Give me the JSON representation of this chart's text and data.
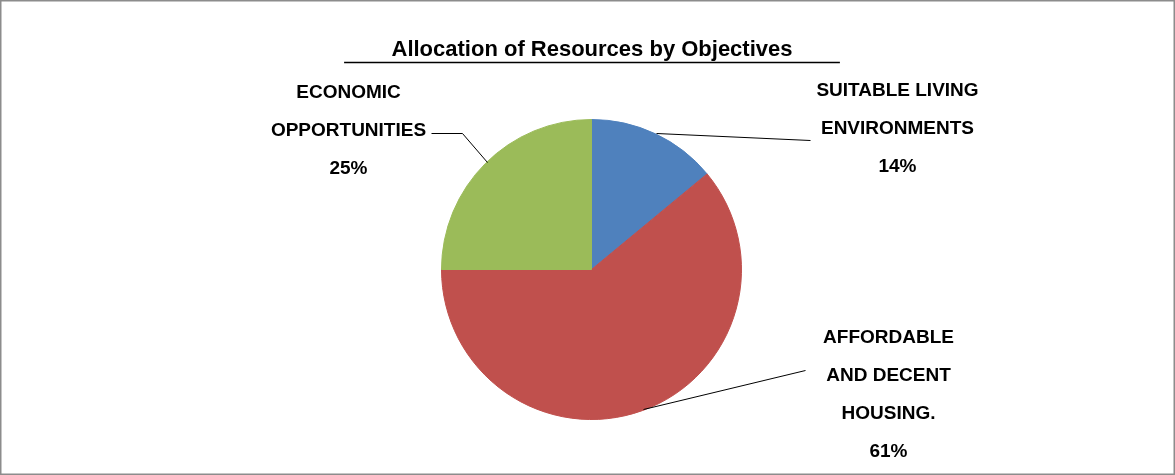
{
  "chart_data": {
    "type": "pie",
    "title": "Allocation of Resources by Objectives",
    "categories": [
      "SUITABLE LIVING ENVIRONMENTS",
      "AFFORDABLE AND DECENT HOUSING.",
      "ECONOMIC OPPORTUNITIES"
    ],
    "values": [
      14,
      61,
      25
    ],
    "value_labels": [
      "14%",
      "61%",
      "25%"
    ],
    "colors": [
      "#4f81bd",
      "#c0504d",
      "#9bbb59"
    ],
    "legend": false
  }
}
